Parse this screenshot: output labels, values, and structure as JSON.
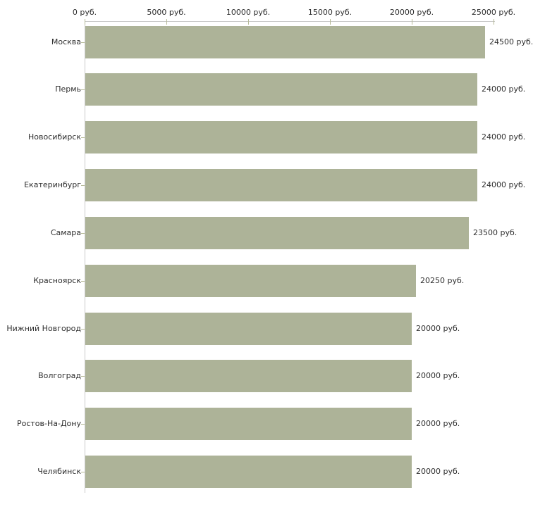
{
  "chart_data": {
    "type": "bar",
    "orientation": "horizontal",
    "title": "",
    "xlabel": "",
    "ylabel": "",
    "unit": "руб.",
    "xlim": [
      0,
      25000
    ],
    "grid": false,
    "legend": null,
    "axis_position": "top",
    "categories": [
      "Москва",
      "Пермь",
      "Новосибирск",
      "Екатеринбург",
      "Самара",
      "Красноярск",
      "Нижний Новгород",
      "Волгоград",
      "Ростов-На-Дону",
      "Челябинск"
    ],
    "values": [
      24500,
      24000,
      24000,
      24000,
      23500,
      20250,
      20000,
      20000,
      20000,
      20000
    ],
    "value_labels": [
      "24500 руб.",
      "24000 руб.",
      "24000 руб.",
      "24000 руб.",
      "23500 руб.",
      "20250 руб.",
      "20000 руб.",
      "20000 руб.",
      "20000 руб.",
      "20000 руб."
    ],
    "x_ticks": [
      0,
      5000,
      10000,
      15000,
      20000,
      25000
    ],
    "x_tick_labels": [
      "0 руб.",
      "5000 руб.",
      "10000 руб.",
      "15000 руб.",
      "20000 руб.",
      "25000 руб."
    ],
    "colors": {
      "bar": "#adb398",
      "axis_line": "#c9c9c9",
      "tick": "#b6ba97",
      "text": "#2e2e2e",
      "background": "#ffffff"
    }
  }
}
